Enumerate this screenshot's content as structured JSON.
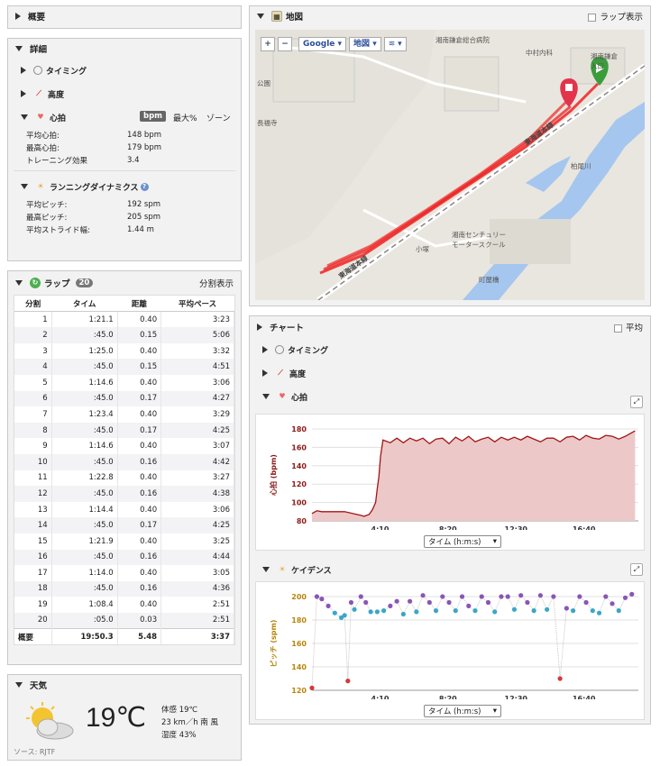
{
  "summary": {
    "title": "概要"
  },
  "details": {
    "title": "詳細",
    "timing": "タイミング",
    "elevation": "高度",
    "hr": {
      "title": "心拍",
      "unit_badge": "bpm",
      "max_pct": "最大%",
      "zone": "ゾーン",
      "rows": [
        {
          "k": "平均心拍:",
          "v": "148 bpm"
        },
        {
          "k": "最高心拍:",
          "v": "179 bpm"
        },
        {
          "k": "トレーニング効果",
          "v": "3.4"
        }
      ]
    },
    "dynamics": {
      "title": "ランニングダイナミクス",
      "rows": [
        {
          "k": "平均ピッチ:",
          "v": "192 spm"
        },
        {
          "k": "最高ピッチ:",
          "v": "205 spm"
        },
        {
          "k": "平均ストライド幅:",
          "v": "1.44 m"
        }
      ]
    }
  },
  "laps": {
    "title": "ラップ",
    "count": "20",
    "split_view": "分割表示",
    "columns": [
      "分割",
      "タイム",
      "距離",
      "平均ペース"
    ],
    "rows": [
      [
        "1",
        "1:21.1",
        "0.40",
        "3:23"
      ],
      [
        "2",
        ":45.0",
        "0.15",
        "5:06"
      ],
      [
        "3",
        "1:25.0",
        "0.40",
        "3:32"
      ],
      [
        "4",
        ":45.0",
        "0.15",
        "4:51"
      ],
      [
        "5",
        "1:14.6",
        "0.40",
        "3:06"
      ],
      [
        "6",
        ":45.0",
        "0.17",
        "4:27"
      ],
      [
        "7",
        "1:23.4",
        "0.40",
        "3:29"
      ],
      [
        "8",
        ":45.0",
        "0.17",
        "4:25"
      ],
      [
        "9",
        "1:14.6",
        "0.40",
        "3:07"
      ],
      [
        "10",
        ":45.0",
        "0.16",
        "4:42"
      ],
      [
        "11",
        "1:22.8",
        "0.40",
        "3:27"
      ],
      [
        "12",
        ":45.0",
        "0.16",
        "4:38"
      ],
      [
        "13",
        "1:14.4",
        "0.40",
        "3:06"
      ],
      [
        "14",
        ":45.0",
        "0.17",
        "4:25"
      ],
      [
        "15",
        "1:21.9",
        "0.40",
        "3:25"
      ],
      [
        "16",
        ":45.0",
        "0.16",
        "4:44"
      ],
      [
        "17",
        "1:14.0",
        "0.40",
        "3:05"
      ],
      [
        "18",
        ":45.0",
        "0.16",
        "4:36"
      ],
      [
        "19",
        "1:08.4",
        "0.40",
        "2:51"
      ],
      [
        "20",
        ":05.0",
        "0.03",
        "2:51"
      ]
    ],
    "summary_row": [
      "概要",
      "19:50.3",
      "5.48",
      "3:37"
    ]
  },
  "weather": {
    "title": "天気",
    "temp": "19℃",
    "feels": "体感 19℃",
    "wind": "23 km／h 南 風",
    "humidity": "湿度 43%",
    "source": "ソース: RJTF"
  },
  "map": {
    "title": "地図",
    "lap_show": "ラップ表示",
    "zoom_in": "+",
    "zoom_out": "−",
    "provider": "Google",
    "map_type": "地図",
    "labels": {
      "hospital": "湘南鎌倉総合病院",
      "clinic": "中村内科",
      "station": "湘南鎌倉\n入口",
      "park": "公園",
      "temple": "長福寺",
      "line1": "東海道本線",
      "line2": "東海道本線",
      "river": "柏尾川",
      "school": "湘南センチュリー\nモータースクール",
      "area": "小塚",
      "bridge": "町屋橋"
    }
  },
  "charts_panel": {
    "title": "チャート",
    "average": "平均",
    "timing": "タイミング",
    "elevation": "高度"
  },
  "chart_data": [
    {
      "type": "area",
      "title": "心拍",
      "ylabel": "心拍 (bpm)",
      "ylim": [
        80,
        180
      ],
      "yticks": [
        "180",
        "160",
        "140",
        "120",
        "100",
        "80"
      ],
      "xticks": [
        "4:10",
        "8:20",
        "12:30",
        "16:40"
      ],
      "axis_select": "タイム (h:m:s)",
      "color": "#a31515",
      "x": [
        0,
        0.3,
        0.6,
        1,
        2,
        3,
        3.2,
        3.5,
        3.7,
        3.9,
        4.0,
        4.1,
        4.2,
        4.35,
        4.5,
        4.8,
        5.2,
        5.6,
        6.0,
        6.4,
        6.8,
        7.2,
        7.6,
        8.0,
        8.4,
        8.8,
        9.2,
        9.6,
        10.0,
        10.4,
        10.8,
        11.2,
        11.6,
        12.0,
        12.4,
        12.8,
        13.2,
        13.6,
        14.0,
        14.4,
        14.8,
        15.2,
        15.6,
        16.0,
        16.4,
        16.8,
        17.2,
        17.6,
        18.0,
        18.4,
        18.8,
        19.2,
        19.6,
        19.8
      ],
      "y": [
        88,
        91,
        90,
        90,
        90,
        86,
        85,
        87,
        92,
        100,
        115,
        128,
        150,
        168,
        167,
        165,
        170,
        165,
        170,
        167,
        170,
        164,
        169,
        170,
        164,
        171,
        167,
        172,
        166,
        169,
        171,
        166,
        171,
        168,
        171,
        168,
        172,
        169,
        166,
        170,
        170,
        166,
        171,
        172,
        168,
        173,
        170,
        169,
        173,
        172,
        169,
        172,
        176,
        178
      ]
    },
    {
      "type": "scatter",
      "title": "ケイデンス",
      "ylabel": "ピッチ (spm)",
      "ylim": [
        120,
        200
      ],
      "yticks": [
        "200",
        "180",
        "160",
        "140",
        "120"
      ],
      "xticks": [
        "4:10",
        "8:20",
        "12:30",
        "16:40"
      ],
      "axis_select": "タイム (h:m:s)",
      "colors": {
        "high": "#8a55b5",
        "mid": "#3aa6c8",
        "low": "#d13b3b"
      },
      "x": [
        0,
        0.3,
        0.6,
        1.0,
        1.4,
        1.8,
        2.0,
        2.2,
        2.4,
        2.6,
        3.0,
        3.3,
        3.6,
        4.0,
        4.4,
        4.8,
        5.2,
        5.6,
        6.0,
        6.4,
        6.8,
        7.2,
        7.6,
        8.0,
        8.4,
        8.8,
        9.2,
        9.6,
        10.0,
        10.4,
        10.8,
        11.2,
        11.6,
        12.0,
        12.4,
        12.8,
        13.2,
        13.6,
        14.0,
        14.4,
        14.8,
        15.2,
        15.6,
        16.0,
        16.4,
        16.8,
        17.2,
        17.6,
        18.0,
        18.4,
        18.8,
        19.2,
        19.6
      ],
      "y": [
        122,
        200,
        198,
        192,
        186,
        182,
        184,
        128,
        195,
        189,
        200,
        195,
        187,
        187,
        188,
        192,
        196,
        185,
        196,
        187,
        201,
        195,
        188,
        200,
        195,
        188,
        200,
        192,
        188,
        200,
        195,
        187,
        200,
        200,
        189,
        201,
        195,
        188,
        201,
        189,
        200,
        130,
        190,
        188,
        200,
        195,
        188,
        186,
        200,
        194,
        188,
        199,
        202
      ]
    }
  ]
}
